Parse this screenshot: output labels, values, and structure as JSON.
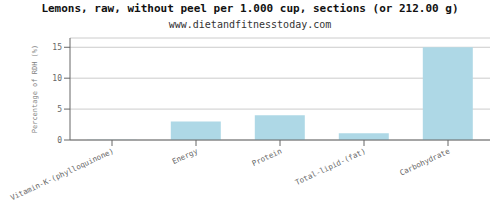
{
  "chart_data": {
    "type": "bar",
    "title": "Lemons, raw, without peel per 1.000 cup, sections (or 212.00 g)",
    "subtitle": "www.dietandfitnesstoday.com",
    "categories": [
      "Vitamin-K-(phylloquinone)",
      "Energy",
      "Protein",
      "Total-lipid-(fat)",
      "Carbohydrate"
    ],
    "values": [
      0.05,
      3.0,
      4.0,
      1.1,
      15.0
    ],
    "color": "#aed8e6",
    "ylabel": "Percentage of RDH (%)",
    "ylim": [
      0,
      16.5
    ],
    "yticks": [
      0,
      5,
      10,
      15
    ],
    "grid": true
  }
}
